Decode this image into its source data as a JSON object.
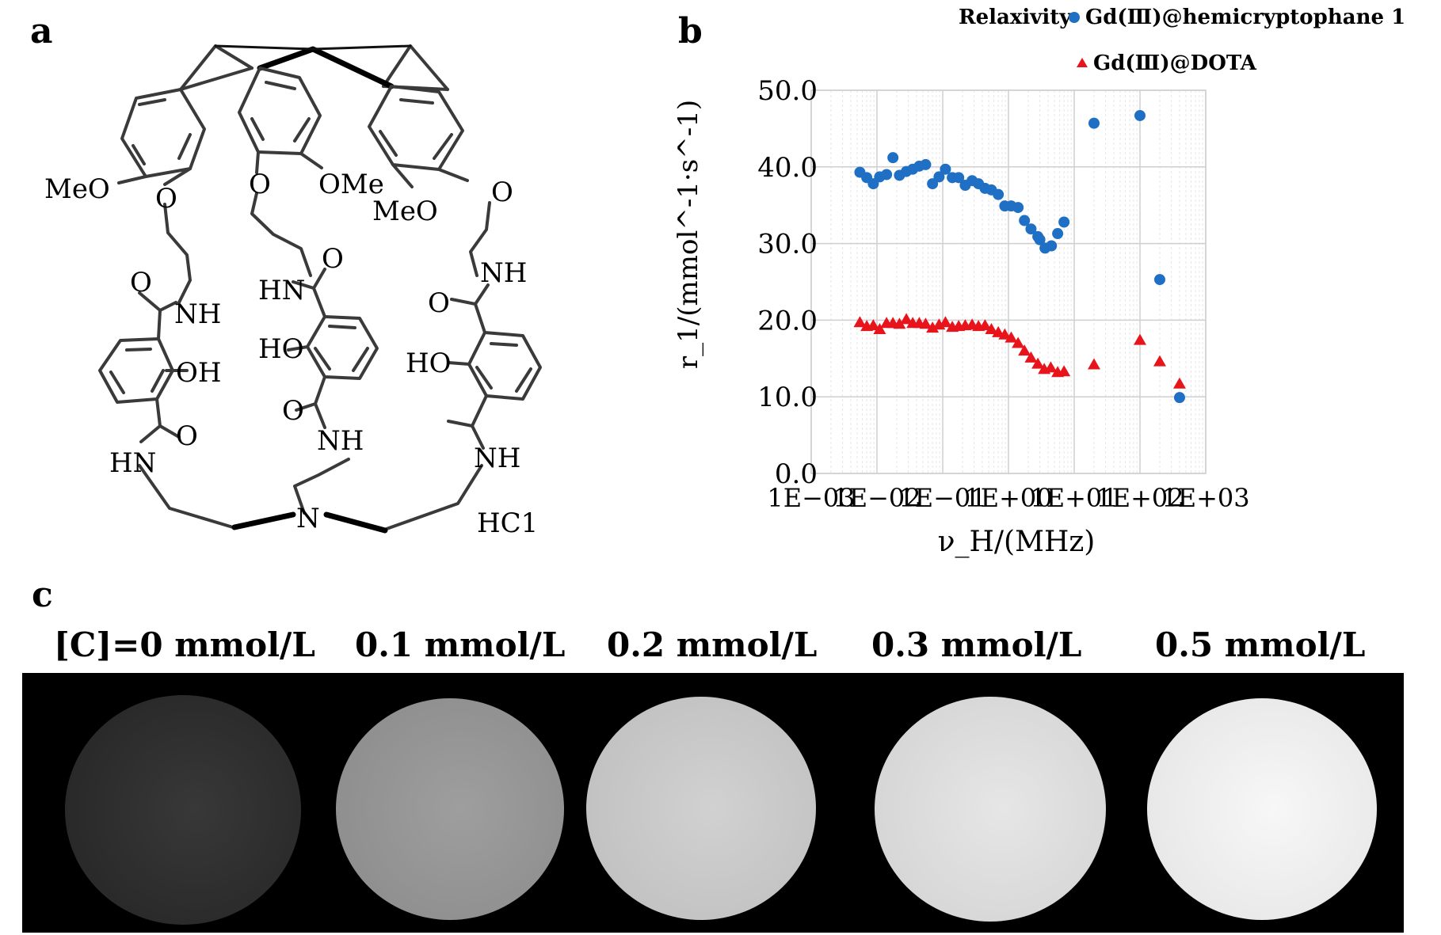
{
  "panels": {
    "a": {
      "letter": "a",
      "compound_label": "HC1",
      "atom_labels": [
        "MeO",
        "O",
        "O",
        "OMe",
        "MeO",
        "O",
        "O",
        "NH",
        "HN",
        "O",
        "NH",
        "HO",
        "HO",
        "OH",
        "O",
        "O",
        "O",
        "HN",
        "NH",
        "NH",
        "N"
      ]
    },
    "b": {
      "letter": "b"
    },
    "c": {
      "letter": "c",
      "concentration_labels": [
        "[C]=0 mmol/L",
        "0.1 mmol/L",
        "0.2 mmol/L",
        "0.3 mmol/L",
        "0.5 mmol/L"
      ],
      "phantom_intensity": [
        0.22,
        0.62,
        0.82,
        0.9,
        0.97
      ]
    }
  },
  "chart_data": {
    "type": "scatter",
    "legend_title": "Relaxivity",
    "legend_position": "top",
    "xlabel": "ν_H/(MHz)",
    "ylabel": "r_1/(mmol^-1·s^-1)",
    "x_scale": "log",
    "xlim": [
      0.001,
      1000
    ],
    "ylim": [
      0,
      50
    ],
    "x_ticks": [
      "1E−03",
      "1E−02",
      "1E−01",
      "1E+00",
      "1E+01",
      "1E+02",
      "1E+03"
    ],
    "y_ticks": [
      "0.0",
      "10.0",
      "20.0",
      "30.0",
      "40.0",
      "50.0"
    ],
    "grid": true,
    "series": [
      {
        "name": "Gd(Ⅲ)@hemicryptophane 1",
        "color": "#1f6fc4",
        "marker": "circle",
        "points": [
          [
            0.0055,
            39.3
          ],
          [
            0.007,
            38.6
          ],
          [
            0.0088,
            37.8
          ],
          [
            0.011,
            38.7
          ],
          [
            0.014,
            39.0
          ],
          [
            0.0175,
            41.2
          ],
          [
            0.022,
            38.9
          ],
          [
            0.028,
            39.4
          ],
          [
            0.035,
            39.7
          ],
          [
            0.044,
            40.1
          ],
          [
            0.055,
            40.3
          ],
          [
            0.07,
            37.8
          ],
          [
            0.088,
            38.7
          ],
          [
            0.11,
            39.7
          ],
          [
            0.14,
            38.6
          ],
          [
            0.175,
            38.6
          ],
          [
            0.22,
            37.6
          ],
          [
            0.28,
            38.2
          ],
          [
            0.35,
            37.8
          ],
          [
            0.44,
            37.2
          ],
          [
            0.55,
            37.0
          ],
          [
            0.7,
            36.4
          ],
          [
            0.88,
            34.9
          ],
          [
            1.1,
            34.9
          ],
          [
            1.4,
            34.7
          ],
          [
            1.75,
            33.0
          ],
          [
            2.2,
            31.9
          ],
          [
            2.8,
            30.9
          ],
          [
            3.0,
            30.5
          ],
          [
            3.6,
            29.4
          ],
          [
            4.5,
            29.7
          ],
          [
            5.6,
            31.3
          ],
          [
            7.0,
            32.8
          ],
          [
            20,
            45.7
          ],
          [
            100,
            46.7
          ],
          [
            200,
            25.3
          ],
          [
            400,
            9.9
          ]
        ]
      },
      {
        "name": "Gd(Ⅲ)@DOTA",
        "color": "#e8141c",
        "marker": "triangle",
        "points": [
          [
            0.0055,
            19.7
          ],
          [
            0.007,
            19.2
          ],
          [
            0.0088,
            19.3
          ],
          [
            0.011,
            18.8
          ],
          [
            0.014,
            19.6
          ],
          [
            0.0175,
            19.6
          ],
          [
            0.022,
            19.5
          ],
          [
            0.028,
            20.1
          ],
          [
            0.035,
            19.6
          ],
          [
            0.044,
            19.6
          ],
          [
            0.055,
            19.5
          ],
          [
            0.07,
            19.0
          ],
          [
            0.088,
            19.4
          ],
          [
            0.11,
            19.7
          ],
          [
            0.14,
            19.1
          ],
          [
            0.175,
            19.2
          ],
          [
            0.22,
            19.3
          ],
          [
            0.28,
            19.4
          ],
          [
            0.35,
            19.2
          ],
          [
            0.44,
            19.3
          ],
          [
            0.55,
            18.8
          ],
          [
            0.7,
            18.4
          ],
          [
            0.88,
            18.1
          ],
          [
            1.1,
            17.7
          ],
          [
            1.4,
            17.0
          ],
          [
            1.75,
            16.0
          ],
          [
            2.2,
            15.1
          ],
          [
            2.8,
            14.3
          ],
          [
            3.5,
            13.6
          ],
          [
            4.4,
            13.8
          ],
          [
            5.6,
            13.2
          ],
          [
            7.0,
            13.3
          ],
          [
            20,
            14.2
          ],
          [
            100,
            17.4
          ],
          [
            200,
            14.6
          ],
          [
            400,
            11.7
          ]
        ]
      }
    ]
  }
}
